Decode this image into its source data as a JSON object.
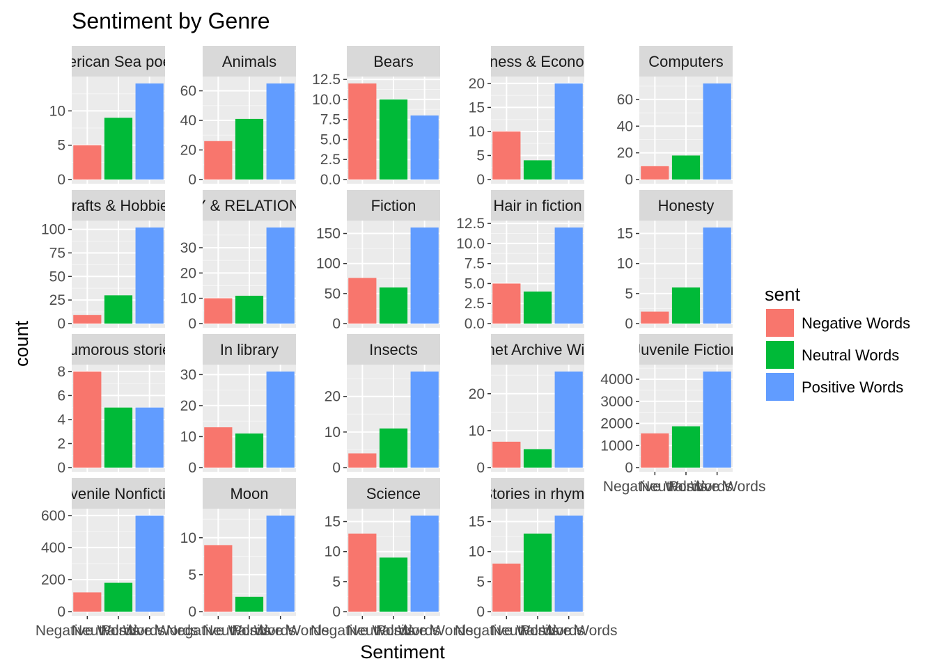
{
  "chart_data": {
    "type": "bar",
    "title": "Sentiment by Genre",
    "xlabel": "Sentiment",
    "ylabel": "count",
    "categories": [
      "Negative Words",
      "Neutral Words",
      "Positive Words"
    ],
    "legend": {
      "title": "sent",
      "placement": "right",
      "entries": [
        {
          "label": "Negative Words",
          "color": "#F8766D"
        },
        {
          "label": "Neutral Words",
          "color": "#00BA38"
        },
        {
          "label": "Positive Words",
          "color": "#619CFF"
        }
      ]
    },
    "grid": true,
    "scales": "free_y",
    "panels": [
      {
        "strip": "American Sea poems",
        "values": [
          5,
          9,
          14
        ],
        "ylim": [
          0,
          14.7
        ],
        "yticks": [
          0,
          5,
          10
        ]
      },
      {
        "strip": "Animals",
        "values": [
          26,
          41,
          65
        ],
        "ylim": [
          0,
          68.25
        ],
        "yticks": [
          0,
          20,
          40,
          60
        ]
      },
      {
        "strip": "Bears",
        "values": [
          12,
          10,
          8
        ],
        "ylim": [
          0,
          12.6
        ],
        "yticks": [
          0.0,
          2.5,
          5.0,
          7.5,
          10.0,
          12.5
        ],
        "tickdecimals": 1
      },
      {
        "strip": "Business & Economics",
        "values": [
          10,
          4,
          20
        ],
        "ylim": [
          0,
          21
        ],
        "yticks": [
          0,
          5,
          10,
          15,
          20
        ]
      },
      {
        "strip": "Computers",
        "values": [
          10,
          18,
          72
        ],
        "ylim": [
          0,
          75.6
        ],
        "yticks": [
          0,
          20,
          40,
          60
        ]
      },
      {
        "strip": "Crafts & Hobbies",
        "values": [
          9,
          30,
          102
        ],
        "ylim": [
          0,
          107.1
        ],
        "yticks": [
          0,
          25,
          50,
          75,
          100
        ]
      },
      {
        "strip": "FAMILY & RELATIONSHIPS",
        "values": [
          10,
          11,
          38
        ],
        "ylim": [
          0,
          39.9
        ],
        "yticks": [
          0,
          10,
          20,
          30
        ]
      },
      {
        "strip": "Fiction",
        "values": [
          76,
          60,
          160
        ],
        "ylim": [
          0,
          168
        ],
        "yticks": [
          0,
          50,
          100,
          150
        ]
      },
      {
        "strip": "Hair in fiction",
        "values": [
          5,
          4,
          12
        ],
        "ylim": [
          0,
          12.6
        ],
        "yticks": [
          0.0,
          2.5,
          5.0,
          7.5,
          10.0,
          12.5
        ],
        "tickdecimals": 1
      },
      {
        "strip": "Honesty",
        "values": [
          2,
          6,
          16
        ],
        "ylim": [
          0,
          16.8
        ],
        "yticks": [
          0,
          5,
          10,
          15
        ]
      },
      {
        "strip": "Humorous stories",
        "values": [
          8,
          5,
          5
        ],
        "ylim": [
          0,
          8.4
        ],
        "yticks": [
          0,
          2,
          4,
          6,
          8
        ]
      },
      {
        "strip": "In library",
        "values": [
          13,
          11,
          31
        ],
        "ylim": [
          0,
          32.55
        ],
        "yticks": [
          0,
          10,
          20,
          30
        ]
      },
      {
        "strip": "Insects",
        "values": [
          4,
          11,
          27
        ],
        "ylim": [
          0,
          28.35
        ],
        "yticks": [
          0,
          10,
          20
        ]
      },
      {
        "strip": "Internet Archive Wishlist",
        "values": [
          7,
          5,
          26
        ],
        "ylim": [
          0,
          27.3
        ],
        "yticks": [
          0,
          10,
          20
        ]
      },
      {
        "strip": "Juvenile Fiction",
        "values": [
          1550,
          1870,
          4350
        ],
        "ylim": [
          0,
          4567.5
        ],
        "yticks": [
          0,
          1000,
          2000,
          3000,
          4000
        ]
      },
      {
        "strip": "Juvenile Nonfiction",
        "values": [
          120,
          180,
          600
        ],
        "ylim": [
          0,
          630
        ],
        "yticks": [
          0,
          200,
          400,
          600
        ]
      },
      {
        "strip": "Moon",
        "values": [
          9,
          2,
          13
        ],
        "ylim": [
          0,
          13.65
        ],
        "yticks": [
          0,
          5,
          10
        ]
      },
      {
        "strip": "Science",
        "values": [
          13,
          9,
          16
        ],
        "ylim": [
          0,
          16.8
        ],
        "yticks": [
          0,
          5,
          10,
          15
        ]
      },
      {
        "strip": "Stories in rhyme",
        "values": [
          8,
          13,
          16
        ],
        "ylim": [
          0,
          16.8
        ],
        "yticks": [
          0,
          5,
          10,
          15
        ]
      }
    ]
  }
}
